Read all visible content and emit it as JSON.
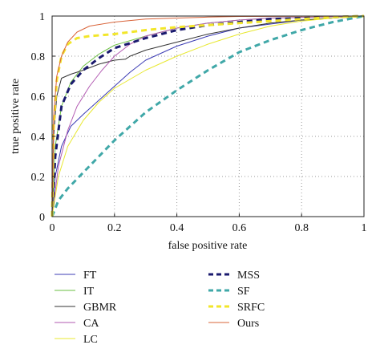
{
  "chart_data": {
    "type": "line",
    "title": "",
    "xlabel": "false positive rate",
    "ylabel": "true positive rate",
    "xlim": [
      0,
      1
    ],
    "ylim": [
      0,
      1
    ],
    "xticks": [
      "0",
      "0.2",
      "0.4",
      "0.6",
      "0.8",
      "1"
    ],
    "yticks": [
      "0",
      "0.2",
      "0.4",
      "0.6",
      "0.8",
      "1"
    ],
    "grid": true,
    "legend": "below, two columns",
    "series": [
      {
        "name": "FT",
        "color": "#3c3cb4",
        "dash": "solid",
        "width": 1,
        "points": [
          [
            0,
            0
          ],
          [
            0.01,
            0.2
          ],
          [
            0.03,
            0.35
          ],
          [
            0.06,
            0.45
          ],
          [
            0.1,
            0.51
          ],
          [
            0.15,
            0.58
          ],
          [
            0.2,
            0.65
          ],
          [
            0.25,
            0.72
          ],
          [
            0.3,
            0.78
          ],
          [
            0.4,
            0.85
          ],
          [
            0.5,
            0.9
          ],
          [
            0.6,
            0.94
          ],
          [
            0.7,
            0.96
          ],
          [
            0.8,
            0.98
          ],
          [
            0.9,
            0.99
          ],
          [
            1,
            1
          ]
        ]
      },
      {
        "name": "IT",
        "color": "#6abf40",
        "dash": "solid",
        "width": 1,
        "points": [
          [
            0,
            0
          ],
          [
            0.01,
            0.35
          ],
          [
            0.03,
            0.55
          ],
          [
            0.06,
            0.67
          ],
          [
            0.1,
            0.75
          ],
          [
            0.15,
            0.81
          ],
          [
            0.2,
            0.855
          ],
          [
            0.3,
            0.9
          ],
          [
            0.4,
            0.94
          ],
          [
            0.5,
            0.965
          ],
          [
            0.6,
            0.98
          ],
          [
            0.7,
            0.99
          ],
          [
            1,
            1
          ]
        ]
      },
      {
        "name": "GBMR",
        "color": "#333333",
        "dash": "solid",
        "width": 1,
        "points": [
          [
            0,
            0
          ],
          [
            0.005,
            0.4
          ],
          [
            0.015,
            0.6
          ],
          [
            0.03,
            0.69
          ],
          [
            0.06,
            0.71
          ],
          [
            0.1,
            0.73
          ],
          [
            0.15,
            0.76
          ],
          [
            0.2,
            0.78
          ],
          [
            0.235,
            0.785
          ],
          [
            0.25,
            0.8
          ],
          [
            0.3,
            0.83
          ],
          [
            0.4,
            0.87
          ],
          [
            0.5,
            0.91
          ],
          [
            0.6,
            0.94
          ],
          [
            0.7,
            0.965
          ],
          [
            0.8,
            0.98
          ],
          [
            0.9,
            0.99
          ],
          [
            1,
            1
          ]
        ]
      },
      {
        "name": "CA",
        "color": "#b25ab2",
        "dash": "solid",
        "width": 1,
        "points": [
          [
            0,
            0
          ],
          [
            0.02,
            0.25
          ],
          [
            0.05,
            0.43
          ],
          [
            0.08,
            0.55
          ],
          [
            0.12,
            0.65
          ],
          [
            0.16,
            0.73
          ],
          [
            0.2,
            0.8
          ],
          [
            0.25,
            0.86
          ],
          [
            0.3,
            0.9
          ],
          [
            0.4,
            0.94
          ],
          [
            0.5,
            0.965
          ],
          [
            0.6,
            0.98
          ],
          [
            0.7,
            0.99
          ],
          [
            1,
            1
          ]
        ]
      },
      {
        "name": "LC",
        "color": "#e8e830",
        "dash": "solid",
        "width": 1,
        "points": [
          [
            0,
            0
          ],
          [
            0.02,
            0.2
          ],
          [
            0.05,
            0.35
          ],
          [
            0.1,
            0.48
          ],
          [
            0.15,
            0.57
          ],
          [
            0.2,
            0.64
          ],
          [
            0.3,
            0.73
          ],
          [
            0.4,
            0.8
          ],
          [
            0.5,
            0.86
          ],
          [
            0.6,
            0.91
          ],
          [
            0.7,
            0.95
          ],
          [
            0.8,
            0.975
          ],
          [
            0.9,
            0.99
          ],
          [
            1,
            1
          ]
        ]
      },
      {
        "name": "MSS",
        "color": "#1a1a6e",
        "dash": "7,5",
        "width": 3,
        "points": [
          [
            0,
            0
          ],
          [
            0.01,
            0.3
          ],
          [
            0.03,
            0.55
          ],
          [
            0.06,
            0.66
          ],
          [
            0.1,
            0.73
          ],
          [
            0.15,
            0.79
          ],
          [
            0.2,
            0.84
          ],
          [
            0.3,
            0.89
          ],
          [
            0.4,
            0.93
          ],
          [
            0.5,
            0.955
          ],
          [
            0.6,
            0.97
          ],
          [
            0.7,
            0.985
          ],
          [
            0.8,
            0.99
          ],
          [
            0.9,
            0.995
          ],
          [
            1,
            1
          ]
        ]
      },
      {
        "name": "SF",
        "color": "#40a8a8",
        "dash": "7,5",
        "width": 3,
        "points": [
          [
            0,
            0
          ],
          [
            0.02,
            0.08
          ],
          [
            0.05,
            0.14
          ],
          [
            0.1,
            0.22
          ],
          [
            0.15,
            0.3
          ],
          [
            0.2,
            0.38
          ],
          [
            0.3,
            0.52
          ],
          [
            0.4,
            0.63
          ],
          [
            0.5,
            0.73
          ],
          [
            0.6,
            0.82
          ],
          [
            0.7,
            0.88
          ],
          [
            0.8,
            0.93
          ],
          [
            0.9,
            0.97
          ],
          [
            1,
            1
          ]
        ]
      },
      {
        "name": "SRFC",
        "color": "#f2e62a",
        "dash": "7,5",
        "width": 3,
        "points": [
          [
            0,
            0
          ],
          [
            0.005,
            0.45
          ],
          [
            0.015,
            0.68
          ],
          [
            0.03,
            0.8
          ],
          [
            0.05,
            0.86
          ],
          [
            0.08,
            0.89
          ],
          [
            0.12,
            0.9
          ],
          [
            0.2,
            0.91
          ],
          [
            0.3,
            0.93
          ],
          [
            0.4,
            0.945
          ],
          [
            0.5,
            0.955
          ],
          [
            0.6,
            0.965
          ],
          [
            0.7,
            0.975
          ],
          [
            0.8,
            0.985
          ],
          [
            0.9,
            0.995
          ],
          [
            1,
            1
          ]
        ]
      },
      {
        "name": "Ours",
        "color": "#d9643a",
        "dash": "solid",
        "width": 1,
        "points": [
          [
            0,
            0
          ],
          [
            0.005,
            0.5
          ],
          [
            0.015,
            0.7
          ],
          [
            0.03,
            0.8
          ],
          [
            0.05,
            0.87
          ],
          [
            0.08,
            0.92
          ],
          [
            0.12,
            0.95
          ],
          [
            0.2,
            0.97
          ],
          [
            0.3,
            0.985
          ],
          [
            0.4,
            0.99
          ],
          [
            0.5,
            0.995
          ],
          [
            0.6,
            0.998
          ],
          [
            1,
            1
          ]
        ]
      }
    ]
  }
}
